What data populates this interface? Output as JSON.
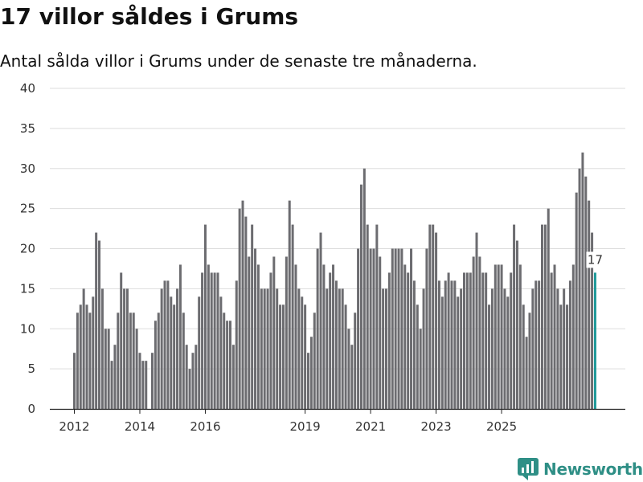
{
  "header": {
    "title": "17 villor såldes i Grums",
    "subtitle": "Antal sålda villor i Grums under de senaste tre månaderna."
  },
  "brand": {
    "name": "Newsworthy"
  },
  "colors": {
    "bar": "#6c6c70",
    "highlight": "#1f9a9a",
    "grid": "#dddddd",
    "axis": "#222222",
    "brand": "#2f8f86"
  },
  "chart_data": {
    "type": "bar",
    "title": "17 villor såldes i Grums",
    "subtitle": "Antal sålda villor i Grums under de senaste tre månaderna.",
    "xlabel": "",
    "ylabel": "",
    "ylim": [
      0,
      40
    ],
    "yticks": [
      0,
      5,
      10,
      15,
      20,
      25,
      30,
      35,
      40
    ],
    "xticks": [
      "2012",
      "2014",
      "2016",
      "2019",
      "2021",
      "2023",
      "2025"
    ],
    "xtick_index": [
      0,
      21,
      42,
      74,
      95,
      116,
      137
    ],
    "values": [
      7,
      12,
      13,
      15,
      13,
      12,
      14,
      22,
      21,
      15,
      10,
      10,
      6,
      8,
      12,
      17,
      15,
      15,
      12,
      12,
      10,
      7,
      6,
      6,
      0,
      7,
      11,
      12,
      15,
      16,
      16,
      14,
      13,
      15,
      18,
      12,
      8,
      5,
      7,
      8,
      14,
      17,
      23,
      18,
      17,
      17,
      17,
      14,
      12,
      11,
      11,
      8,
      16,
      25,
      26,
      24,
      19,
      23,
      20,
      18,
      15,
      15,
      15,
      17,
      19,
      15,
      13,
      13,
      19,
      26,
      23,
      18,
      15,
      14,
      13,
      7,
      9,
      12,
      20,
      22,
      18,
      15,
      17,
      18,
      16,
      15,
      15,
      13,
      10,
      8,
      12,
      20,
      28,
      30,
      23,
      20,
      20,
      23,
      19,
      15,
      15,
      17,
      20,
      20,
      20,
      20,
      18,
      17,
      20,
      16,
      13,
      10,
      15,
      20,
      23,
      23,
      22,
      16,
      14,
      16,
      17,
      16,
      16,
      14,
      15,
      17,
      17,
      17,
      19,
      22,
      19,
      17,
      17,
      13,
      15,
      18,
      18,
      18,
      15,
      14,
      17,
      23,
      21,
      18,
      13,
      9,
      12,
      15,
      16,
      16,
      23,
      23,
      25,
      17,
      18,
      15,
      13,
      15,
      13,
      16,
      18,
      27,
      30,
      32,
      29,
      26,
      22,
      17
    ],
    "highlight_last": true,
    "annotations": [
      {
        "label": "17",
        "target": "last"
      }
    ]
  }
}
